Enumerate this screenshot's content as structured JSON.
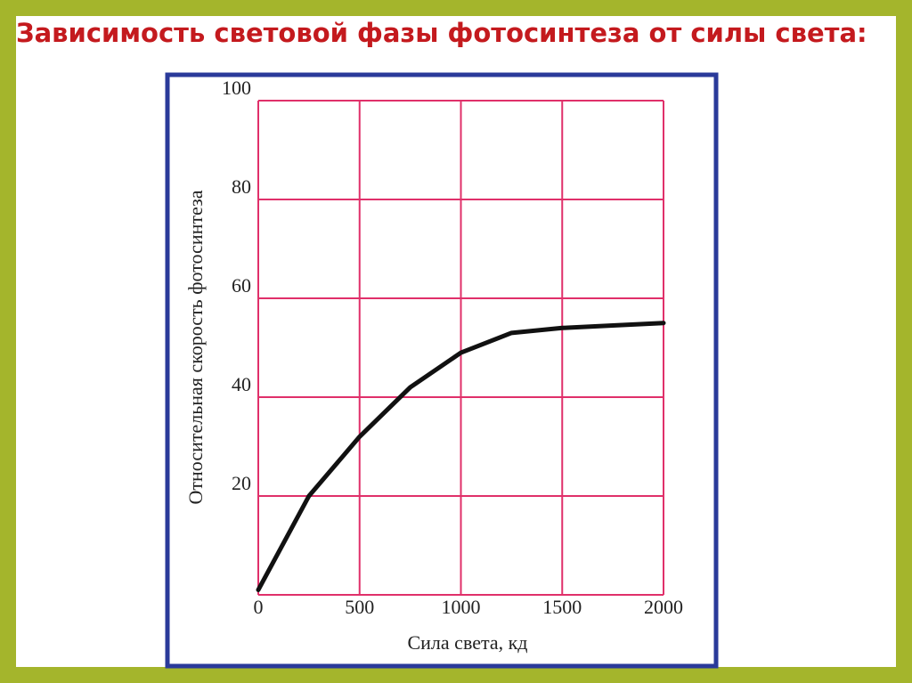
{
  "title": "Зависимость световой фазы фотосинтеза от силы света:",
  "chart_data": {
    "type": "line",
    "x_label": "Сила света, кд",
    "y_label": "Относительная скорость фотосинтеза",
    "x": [
      0,
      250,
      500,
      750,
      1000,
      1250,
      1500,
      1750,
      2000
    ],
    "series": [
      {
        "color": "#111111",
        "values": [
          1,
          20,
          32,
          42,
          49,
          53,
          54,
          54.5,
          55
        ]
      }
    ],
    "xlim": [
      0,
      2000
    ],
    "xticks": [
      0,
      500,
      1000,
      1500,
      2000
    ],
    "ylim": [
      0,
      100
    ],
    "yticks": [
      20,
      40,
      60,
      80,
      100
    ],
    "grid": true,
    "grid_color": "#e0306a"
  }
}
